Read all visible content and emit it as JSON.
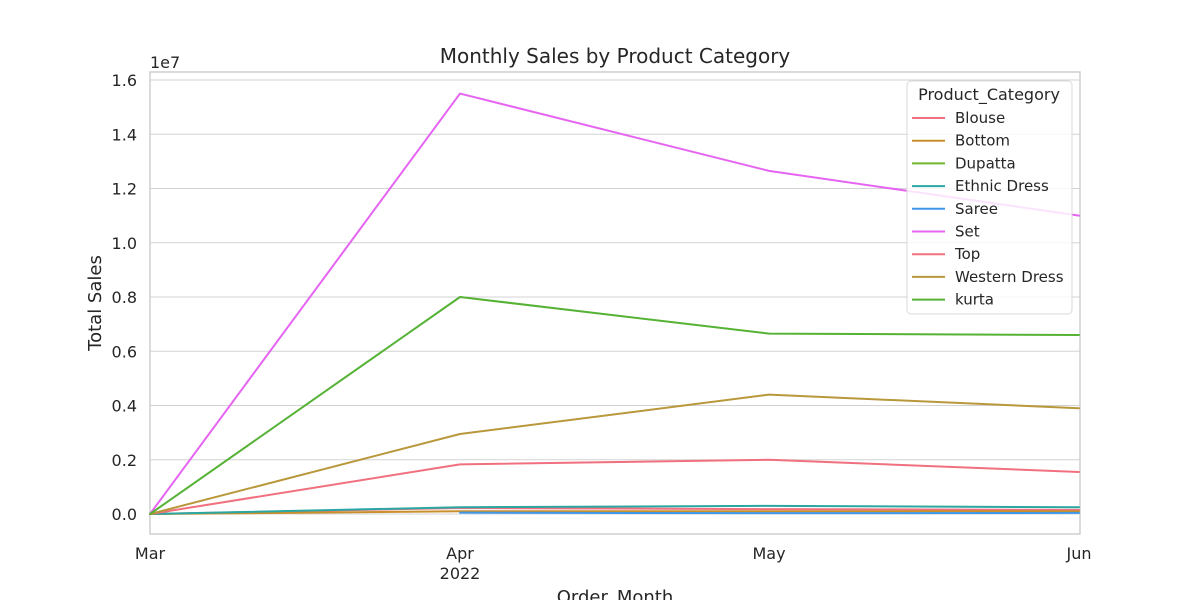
{
  "chart_data": {
    "type": "line",
    "title": "Monthly Sales by Product Category",
    "xlabel": "Order_Month",
    "ylabel": "Total Sales",
    "y_multiplier_label": "1e7",
    "categories": [
      "Mar",
      "Apr",
      "May",
      "Jun"
    ],
    "year_label": "2022",
    "ylim": [
      -0.08,
      1.63
    ],
    "yticks": [
      0.0,
      0.2,
      0.4,
      0.6,
      0.8,
      1.0,
      1.2,
      1.4,
      1.6
    ],
    "ytick_labels": [
      "0.0",
      "0.2",
      "0.4",
      "0.6",
      "0.8",
      "1.0",
      "1.2",
      "1.4",
      "1.6"
    ],
    "grid": true,
    "legend_title": "Product_Category",
    "legend_position": "top-right",
    "series": [
      {
        "name": "Blouse",
        "color": "#f0707f",
        "values": [
          0.0,
          0.022,
          0.018,
          0.015
        ]
      },
      {
        "name": "Bottom",
        "color": "#c98f2a",
        "values": [
          0.0,
          0.01,
          0.01,
          0.01
        ]
      },
      {
        "name": "Dupatta",
        "color": "#72b62f",
        "values": [
          0.0,
          null,
          null,
          null
        ]
      },
      {
        "name": "Ethnic Dress",
        "color": "#2aa7a2",
        "values": [
          0.0,
          0.025,
          0.03,
          0.025
        ]
      },
      {
        "name": "Saree",
        "color": "#3f97e8",
        "values": [
          null,
          0.005,
          0.003,
          0.004
        ]
      },
      {
        "name": "Set",
        "color": "#e565f2",
        "values": [
          0.0,
          1.55,
          1.265,
          1.1
        ]
      },
      {
        "name": "Top",
        "color": "#f0707f",
        "values": [
          0.0,
          0.183,
          0.2,
          0.155
        ]
      },
      {
        "name": "Western Dress",
        "color": "#b9973b",
        "values": [
          0.0,
          0.295,
          0.44,
          0.39
        ]
      },
      {
        "name": "kurta",
        "color": "#55b235",
        "values": [
          0.0,
          0.8,
          0.665,
          0.66
        ]
      }
    ]
  }
}
